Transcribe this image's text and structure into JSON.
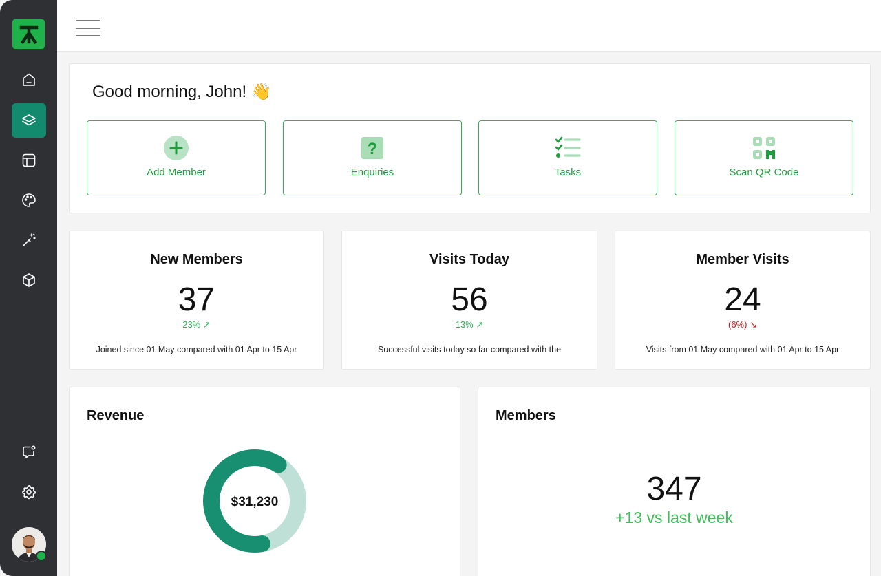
{
  "sidebar": {
    "logo": "logo-icon",
    "items": [
      {
        "icon": "home-icon",
        "active": false
      },
      {
        "icon": "layers-icon",
        "active": true
      },
      {
        "icon": "layout-icon",
        "active": false
      },
      {
        "icon": "palette-icon",
        "active": false
      },
      {
        "icon": "magic-wand-icon",
        "active": false
      },
      {
        "icon": "box-icon",
        "active": false
      }
    ],
    "bottom": [
      {
        "icon": "chat-icon"
      },
      {
        "icon": "gear-icon"
      }
    ],
    "avatar_status": "online"
  },
  "header": {
    "menu_icon": "hamburger-icon"
  },
  "greeting": "Good morning, John! 👋",
  "actions": [
    {
      "label": "Add Member",
      "icon": "add-circle-icon"
    },
    {
      "label": "Enquiries",
      "icon": "question-icon"
    },
    {
      "label": "Tasks",
      "icon": "checklist-icon"
    },
    {
      "label": "Scan QR Code",
      "icon": "qr-code-icon"
    }
  ],
  "stats": [
    {
      "title": "New Members",
      "value": "37",
      "change": "23%",
      "direction": "up",
      "description": "Joined since 01 May compared with 01 Apr to 15 Apr"
    },
    {
      "title": "Visits Today",
      "value": "56",
      "change": "13%",
      "direction": "up",
      "description": "Successful visits today so far compared with the"
    },
    {
      "title": "Member Visits",
      "value": "24",
      "change": "(6%)",
      "direction": "down",
      "description": "Visits from 01 May compared with 01 Apr to 15 Apr"
    }
  ],
  "revenue": {
    "title": "Revenue",
    "total": "$31,230",
    "progress": 0.62,
    "colors": {
      "filled": "#178f70",
      "track": "#bfe0d6"
    }
  },
  "members": {
    "title": "Members",
    "value": "347",
    "change": "+13 vs last week"
  },
  "colors": {
    "accent": "#2cb457",
    "sidebar": "#2f3034",
    "active": "#138a6d",
    "down": "#d11a1a"
  }
}
